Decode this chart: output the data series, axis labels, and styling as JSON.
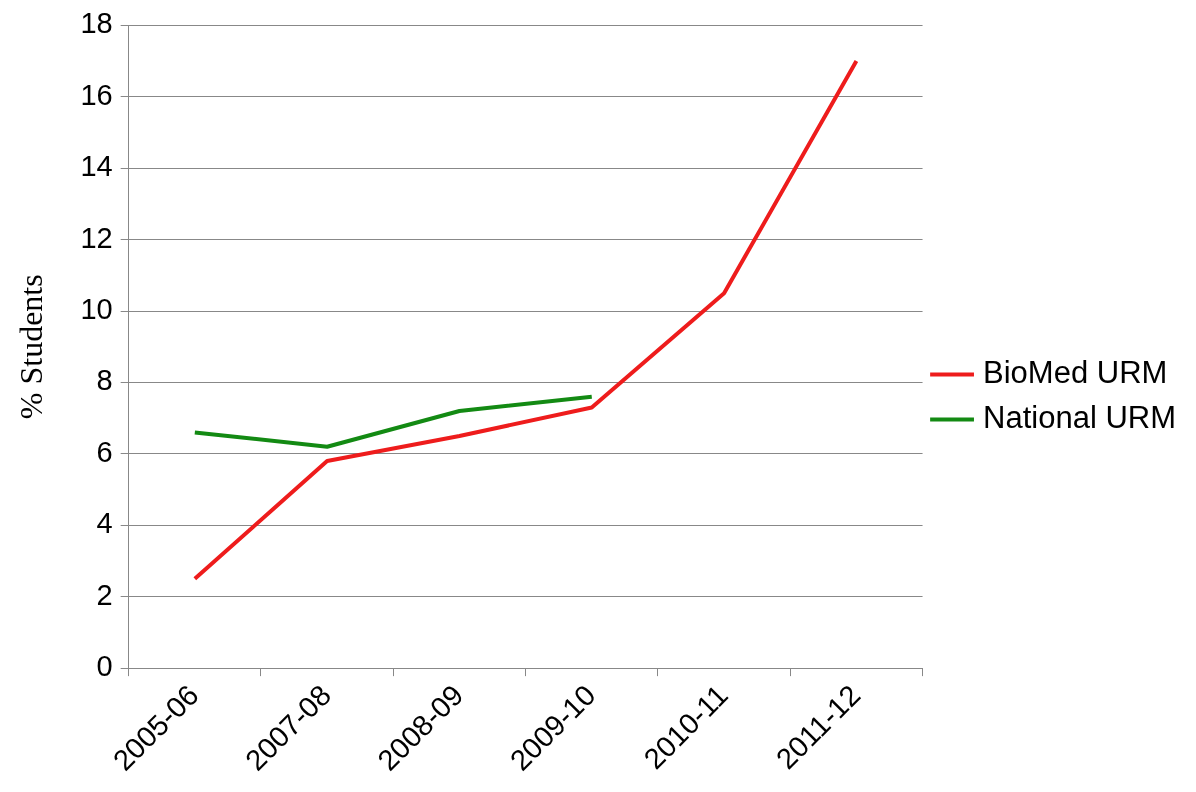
{
  "chart_data": {
    "type": "line",
    "ylabel": "% Students",
    "categories": [
      "2005-06",
      "2007-08",
      "2008-09",
      "2009-10",
      "2010-11",
      "2011-12"
    ],
    "series": [
      {
        "name": "BioMed URM",
        "color": "#ee1c1c",
        "values": [
          2.5,
          5.8,
          6.5,
          7.3,
          10.5,
          17
        ]
      },
      {
        "name": "National URM",
        "color": "#138a13",
        "values": [
          6.6,
          6.2,
          7.2,
          7.6,
          null,
          null
        ]
      }
    ],
    "ylim": [
      0,
      18
    ],
    "yticks": [
      0,
      2,
      4,
      6,
      8,
      10,
      12,
      14,
      16,
      18
    ],
    "grid": "y",
    "legend": "right",
    "marker": "none",
    "line_style": "solid"
  }
}
